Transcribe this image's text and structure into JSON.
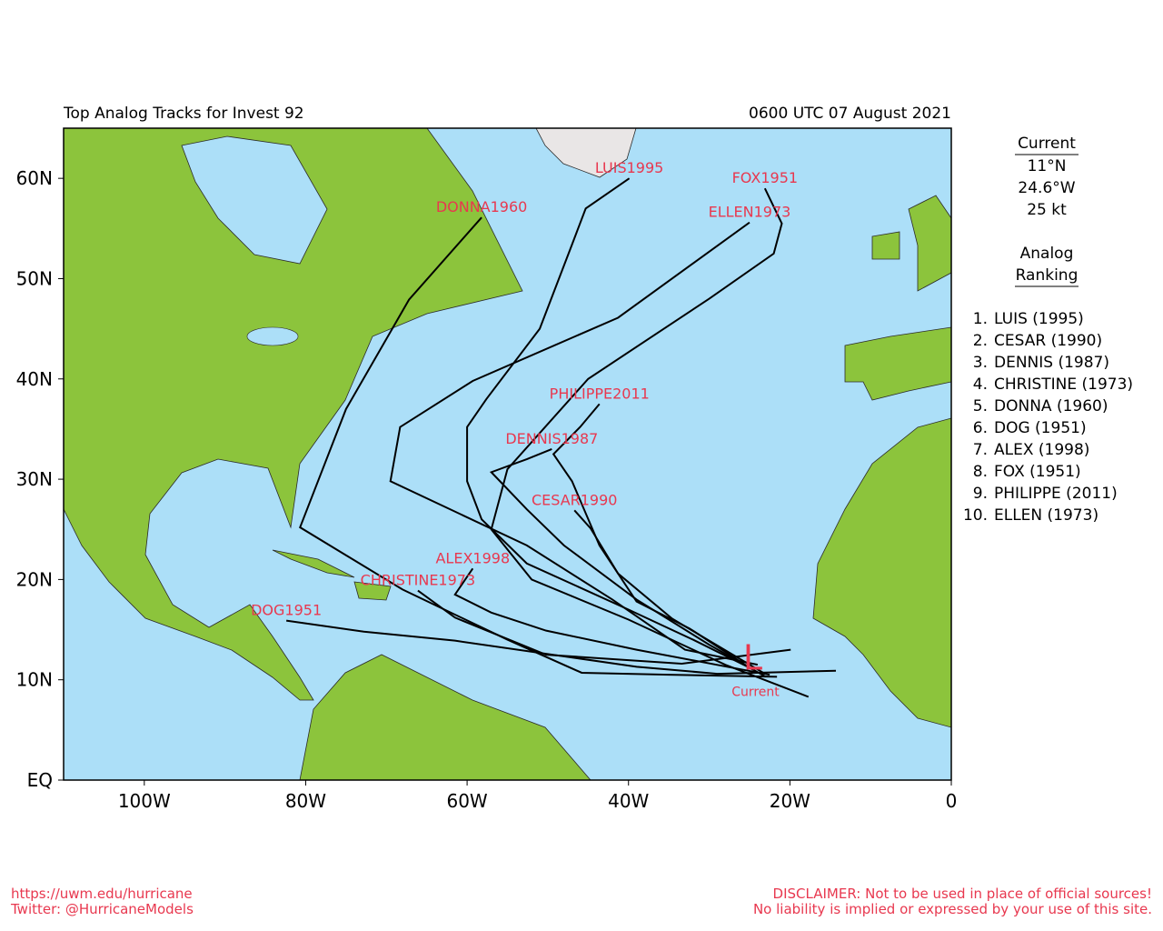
{
  "map": {
    "type": "track-map",
    "title": "Top Analog Tracks for Invest 92",
    "time": "0600 UTC 07 August 2021",
    "xlim": [
      -110,
      0
    ],
    "ylim": [
      0,
      65
    ],
    "xticks": [
      {
        "value": -100,
        "label": "100W"
      },
      {
        "value": -80,
        "label": "80W"
      },
      {
        "value": -60,
        "label": "60W"
      },
      {
        "value": -40,
        "label": "40W"
      },
      {
        "value": -20,
        "label": "20W"
      },
      0
    ],
    "yticks": [
      {
        "value": 0,
        "label": "EQ"
      },
      {
        "value": 10,
        "label": "10N"
      },
      {
        "value": 20,
        "label": "20N"
      },
      {
        "value": 30,
        "label": "30N"
      },
      {
        "value": 40,
        "label": "40N"
      },
      {
        "value": 50,
        "label": "50N"
      },
      {
        "value": 60,
        "label": "60N"
      }
    ],
    "track_color": "#000000",
    "label_color": "#e8384f",
    "current": {
      "symbol": "L",
      "label": "Current",
      "lon": -24.6,
      "lat": 11
    },
    "tracks": [
      {
        "name": "LUIS1995",
        "lon": [
          -24.5,
          -32,
          -40,
          -52.6,
          -58.2,
          -60,
          -60,
          -57.6,
          -51,
          -47,
          -45.3,
          -39.9
        ],
        "lat": [
          11,
          14,
          17,
          21.6,
          26,
          29.8,
          35.2,
          38,
          45,
          53.4,
          57,
          60
        ]
      },
      {
        "name": "FOX1951",
        "lon": [
          -17.7,
          -28,
          -40,
          -52,
          -57,
          -55,
          -45,
          -30,
          -22,
          -21,
          -23.1
        ],
        "lat": [
          8.3,
          11.5,
          16,
          20,
          25,
          31,
          40,
          48,
          52.5,
          55.5,
          59
        ]
      },
      {
        "name": "DONNA1960",
        "lon": [
          -21.6,
          -35,
          -45.8,
          -55,
          -68,
          -80.7,
          -75,
          -67.2,
          -58.2
        ],
        "lat": [
          10.3,
          10.5,
          10.7,
          14,
          19,
          25.2,
          37,
          47.9,
          56.1
        ]
      },
      {
        "name": "ELLEN1973",
        "lon": [
          -24,
          -33,
          -42,
          -52.6,
          -69.5,
          -68.3,
          -59.3,
          -41.3,
          -25
        ],
        "lat": [
          11.5,
          13,
          18,
          23.4,
          29.8,
          35.2,
          39.8,
          46.1,
          55.6
        ]
      },
      {
        "name": "PHILIPPE2011",
        "lon": [
          -24.6,
          -32.4,
          -39,
          -43.6,
          -47,
          -49.3,
          -46,
          -43.6
        ],
        "lat": [
          11,
          15.1,
          17.8,
          23.4,
          29.8,
          32.5,
          35.2,
          37.5
        ]
      },
      {
        "name": "DENNIS1987",
        "lon": [
          -23,
          -30,
          -39,
          -48,
          -52.6,
          -57,
          -52.6,
          -49.5
        ],
        "lat": [
          10.3,
          13.5,
          18,
          23.4,
          27,
          30.7,
          32,
          33
        ]
      },
      {
        "name": "CESAR1990",
        "lon": [
          -23.3,
          -34.6,
          -41.3,
          -44.7,
          -46.7
        ],
        "lat": [
          10.7,
          16.1,
          20.6,
          25.1,
          26.9
        ]
      },
      {
        "name": "ALEX1998",
        "lon": [
          -22.5,
          -39,
          -50.2,
          -57,
          -61.5,
          -59.3
        ],
        "lat": [
          10.5,
          13,
          14.9,
          16.7,
          18.5,
          21.1
        ]
      },
      {
        "name": "CHRISTINE1973",
        "lon": [
          -19.9,
          -33.4,
          -50.2,
          -61.5,
          -66.1
        ],
        "lat": [
          13,
          11.6,
          12.5,
          16.2,
          18.9
        ]
      },
      {
        "name": "DOG1951",
        "lon": [
          -14.3,
          -29,
          -39,
          -61.5,
          -72.8,
          -82.4
        ],
        "lat": [
          10.9,
          10.6,
          11.3,
          13.9,
          14.8,
          15.9
        ]
      }
    ],
    "info": {
      "title": "Current",
      "lat": "11°N",
      "lon": "24.6°W",
      "wind": "25 kt",
      "ranking_title": [
        "Analog",
        "Ranking"
      ]
    },
    "ranking": [
      {
        "rank": "1.",
        "name": "LUIS (1995)"
      },
      {
        "rank": "2.",
        "name": "CESAR (1990)"
      },
      {
        "rank": "3.",
        "name": "DENNIS (1987)"
      },
      {
        "rank": "4.",
        "name": "CHRISTINE (1973)"
      },
      {
        "rank": "5.",
        "name": "DONNA (1960)"
      },
      {
        "rank": "6.",
        "name": "DOG (1951)"
      },
      {
        "rank": "7.",
        "name": "ALEX (1998)"
      },
      {
        "rank": "8.",
        "name": "FOX (1951)"
      },
      {
        "rank": "9.",
        "name": "PHILIPPE (2011)"
      },
      {
        "rank": "10.",
        "name": "ELLEN (1973)"
      }
    ],
    "footer": {
      "url": "https://uwm.edu/hurricane",
      "twitter": "Twitter: @HurricaneModels",
      "disclaimer1": "DISCLAIMER: Not to be used in place of official sources!",
      "disclaimer2": "No liability is implied or expressed by your use of this site."
    }
  }
}
